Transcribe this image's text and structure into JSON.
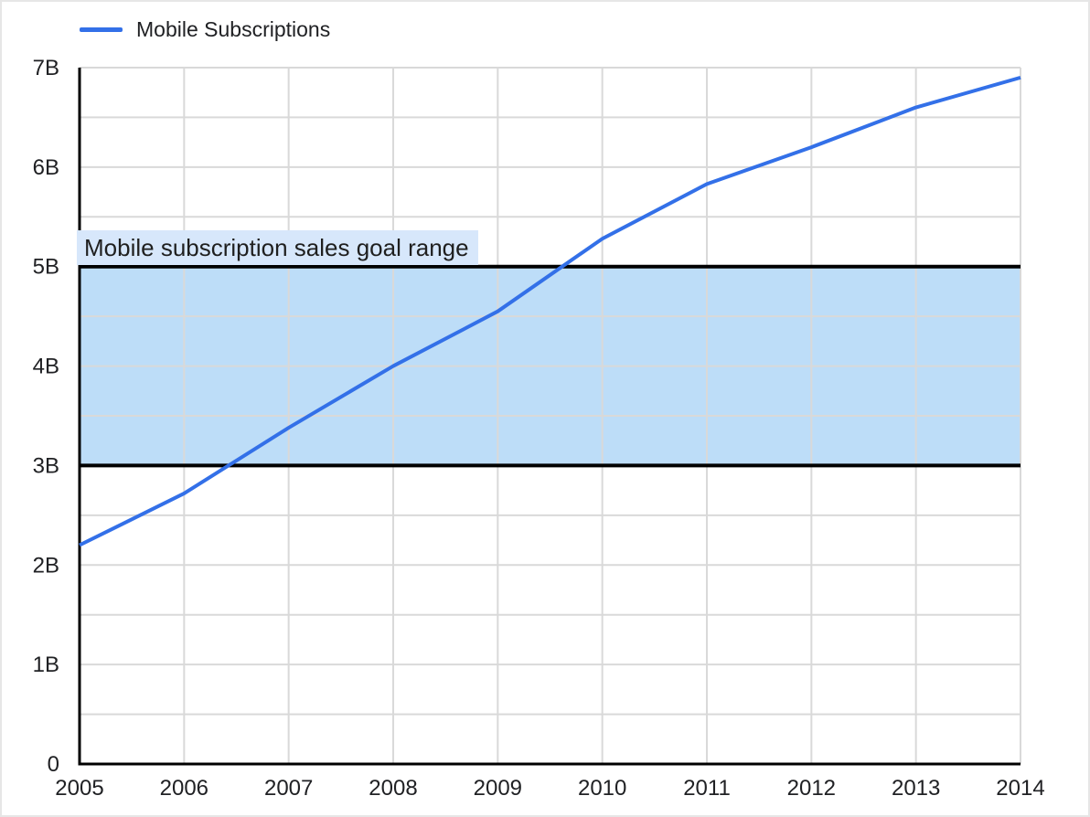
{
  "legend": {
    "items": [
      {
        "label": "Mobile Subscriptions",
        "color": "#3370e8"
      }
    ]
  },
  "annotation": {
    "label": "Mobile subscription sales goal range",
    "bg_color": "#d7e7fb"
  },
  "colors": {
    "line": "#3370e8",
    "band_fill": "#bdddf8",
    "band_border": "#000000",
    "grid": "#d9d9d9",
    "axis": "#000000",
    "text": "#202124"
  },
  "chart_data": {
    "type": "line",
    "title": "",
    "xlabel": "",
    "ylabel": "",
    "unit": "billions",
    "x": [
      2005,
      2006,
      2007,
      2008,
      2009,
      2010,
      2011,
      2012,
      2013,
      2014
    ],
    "x_tick_labels": [
      "2005",
      "2006",
      "2007",
      "2008",
      "2009",
      "2010",
      "2011",
      "2012",
      "2013",
      "2014"
    ],
    "series": [
      {
        "name": "Mobile Subscriptions",
        "color": "#3370e8",
        "values": [
          2.2,
          2.72,
          3.38,
          4.0,
          4.55,
          5.28,
          5.83,
          6.2,
          6.6,
          6.9
        ]
      }
    ],
    "ylim": [
      0,
      7
    ],
    "y_tick_labels": [
      "0",
      "1B",
      "2B",
      "3B",
      "4B",
      "5B",
      "6B",
      "7B"
    ],
    "ytick_major_step": 1,
    "ytick_minor_step": 0.5,
    "grid": true,
    "legend_position": "top-left",
    "band": {
      "from": 3,
      "to": 5,
      "label": "Mobile subscription sales goal range",
      "fill": "#bdddf8",
      "border_color": "#000000"
    }
  }
}
